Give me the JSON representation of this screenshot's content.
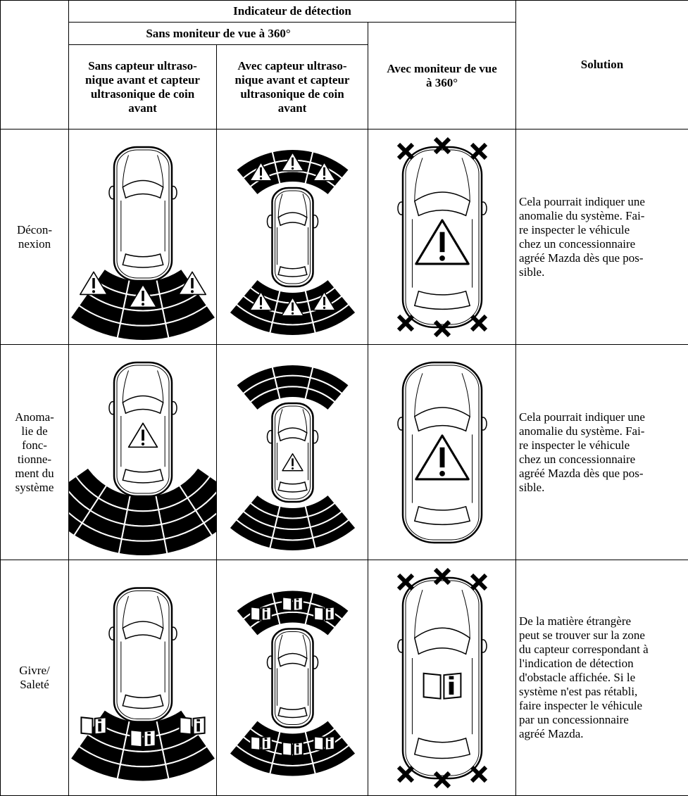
{
  "header": {
    "detection": "Indicateur de détection",
    "without_360": "Sans moniteur de vue à 360°",
    "col_no_front": [
      "Sans capteur ultraso-",
      "nique avant et capteur",
      "ultrasonique de coin",
      "avant"
    ],
    "col_front": [
      "Avec capteur ultraso-",
      "nique avant et capteur",
      "ultrasonique de coin",
      "avant"
    ],
    "col_360": [
      "Avec moniteur de vue",
      "à 360°"
    ],
    "solution": "Solution"
  },
  "rows": [
    {
      "condition": [
        "Décon-",
        "nexion"
      ],
      "solution": [
        "Cela pourrait indiquer une",
        "anomalie du système. Fai-",
        "re inspecter le véhicule",
        "chez un concessionnaire",
        "agréé Mazda dès que pos-",
        "sible."
      ]
    },
    {
      "condition": [
        "Anoma-",
        "lie de",
        "fonc-",
        "tionne-",
        "ment du",
        "système"
      ],
      "solution": [
        "Cela pourrait indiquer une",
        "anomalie du système. Fai-",
        "re inspecter le véhicule",
        "chez un concessionnaire",
        "agréé Mazda dès que pos-",
        "sible."
      ]
    },
    {
      "condition": [
        "Givre/",
        "Saleté"
      ],
      "solution": [
        "De la matière étrangère",
        "peut se trouver sur la zone",
        "du capteur correspondant à",
        "l'indication de détection",
        "d'obstacle affichée. Si le",
        "système n'est pas rétabli,",
        "faire inspecter le véhicule",
        "par un concessionnaire",
        "agréé Mazda."
      ]
    }
  ]
}
